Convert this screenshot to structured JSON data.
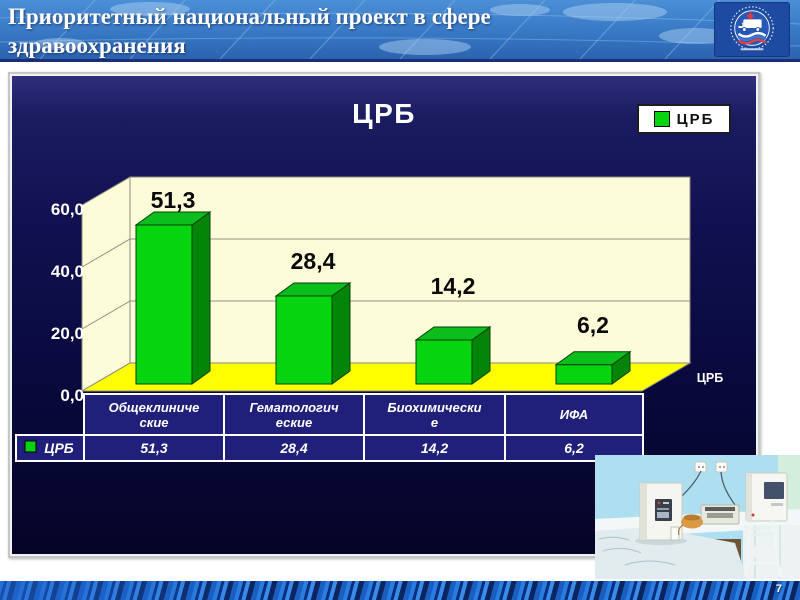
{
  "slide": {
    "title_line1": "Приоритетный национальный проект в сфере",
    "title_line2": "здравоохранения",
    "page_number": "7"
  },
  "chart": {
    "title": "ЦРБ",
    "legend_label": "ЦРБ",
    "series_axis_label": "ЦРБ"
  },
  "chart_data": {
    "type": "bar",
    "style": "3d-column",
    "title": "ЦРБ",
    "categories": [
      "Общеклинические",
      "Гематологические",
      "Биохимические",
      "ИФА"
    ],
    "series": [
      {
        "name": "ЦРБ",
        "values": [
          51.3,
          28.4,
          14.2,
          6.2
        ]
      }
    ],
    "value_labels": [
      "51,3",
      "28,4",
      "14,2",
      "6,2"
    ],
    "ylim": [
      0,
      60
    ],
    "yticks": [
      0,
      20,
      40,
      60
    ],
    "ytick_labels": [
      "0,0",
      "20,0",
      "40,0",
      "60,0"
    ],
    "xlabel": "",
    "ylabel": "",
    "legend_position": "top-right",
    "grid": true,
    "colors": {
      "bar_front": "#06d40e",
      "bar_top": "#0cbe1c",
      "bar_side": "#048408",
      "wall": "#fdfcd8",
      "floor": "#ffff00",
      "plot_background": "#0a0a46"
    }
  },
  "data_table": {
    "row_header": "ЦРБ",
    "category_cells": [
      [
        "Общеклиниче",
        "ские"
      ],
      [
        "Гематологич",
        "еские"
      ],
      [
        "Биохимически",
        "е"
      ],
      [
        "ИФА"
      ]
    ],
    "value_cells": [
      "51,3",
      "28,4",
      "14,2",
      "6,2"
    ]
  }
}
